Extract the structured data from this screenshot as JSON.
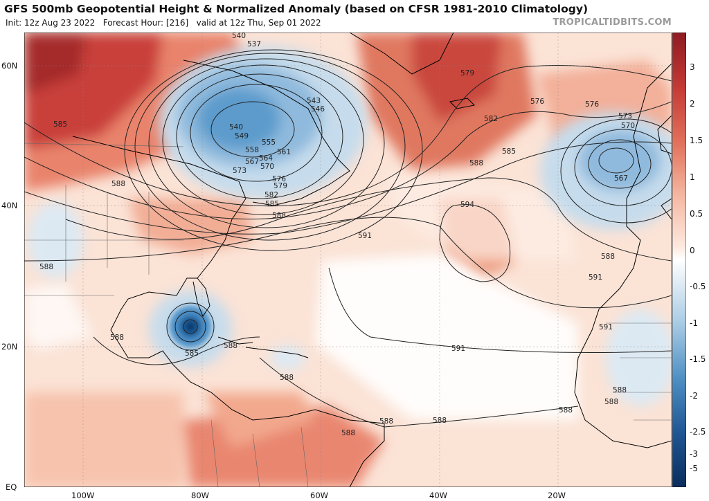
{
  "header": {
    "title": "GFS 500mb Geopotential Height & Normalized Anomaly (based on CFSR 1981-2010 Climatology)",
    "init": "Init: 12z Aug 23 2022",
    "forecast_hour": "Forecast Hour: [216]",
    "valid": "valid at 12z Thu, Sep 01 2022",
    "brand": "TROPICALTIDBITS.COM"
  },
  "map": {
    "lon_ticks": [
      "100W",
      "80W",
      "60W",
      "40W",
      "20W"
    ],
    "lat_ticks": [
      "60N",
      "40N",
      "20N",
      "EQ"
    ],
    "contour_labels": [
      "540",
      "537",
      "543",
      "546",
      "540",
      "549",
      "555",
      "558",
      "561",
      "564",
      "567",
      "570",
      "573",
      "576",
      "579",
      "582",
      "585",
      "588",
      "585",
      "588",
      "591",
      "594",
      "579",
      "582",
      "585",
      "588",
      "576",
      "576",
      "573",
      "570",
      "567",
      "588",
      "591",
      "591",
      "588",
      "588",
      "585",
      "588",
      "588",
      "588",
      "588",
      "591",
      "588",
      "588",
      "588",
      "588"
    ]
  },
  "colorbar": {
    "ticks": [
      "3",
      "2",
      "1.5",
      "1",
      "0.5",
      "0",
      "-0.5",
      "-1",
      "-1.5",
      "-2",
      "-2.5",
      "-3",
      "-5"
    ],
    "colors": {
      "strong_pos": "#8e1b22",
      "pos": "#d9564a",
      "weak_pos": "#f5b8a2",
      "neutral": "#ffffff",
      "weak_neg": "#c3dbec",
      "neg": "#5a9dce",
      "strong_neg": "#0a2d5c"
    }
  }
}
